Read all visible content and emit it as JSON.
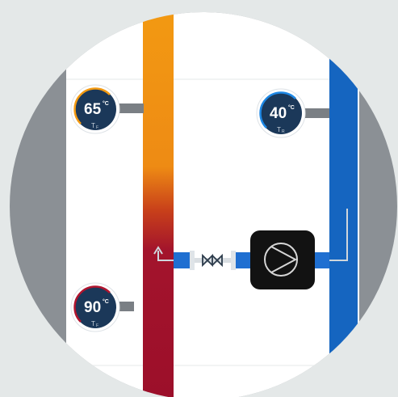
{
  "gauges": [
    {
      "value": "65",
      "unit": "°C",
      "symbol": "T",
      "sub": "F"
    },
    {
      "value": "40",
      "unit": "°C",
      "symbol": "T",
      "sub": "R"
    },
    {
      "value": "90",
      "unit": "°C",
      "symbol": "T",
      "sub": "F"
    }
  ]
}
